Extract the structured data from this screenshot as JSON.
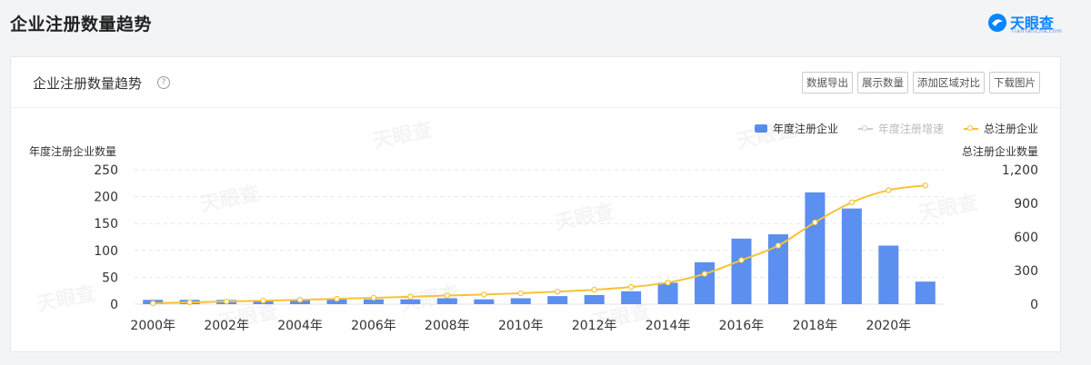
{
  "page": {
    "title": "企业注册数量趋势"
  },
  "brand": {
    "name": "天眼查",
    "sub": "TianYanCha.com"
  },
  "card": {
    "title": "企业注册数量趋势",
    "help_icon": "question-circle-icon"
  },
  "toolbar": {
    "export": "数据导出",
    "show_numbers": "展示数量",
    "add_region": "添加区域对比",
    "download": "下载图片"
  },
  "legend": {
    "bars": "年度注册企业",
    "growth": "年度注册增速",
    "total": "总注册企业"
  },
  "colors": {
    "bar": "#5b8ff0",
    "line": "#f7c234",
    "grid": "#e6e6e6",
    "axis_text": "#333333",
    "disabled": "#bbbbbb"
  },
  "chart_data": {
    "type": "bar",
    "title": "企业注册数量趋势",
    "x": [
      "2000年",
      "2001年",
      "2002年",
      "2003年",
      "2004年",
      "2005年",
      "2006年",
      "2007年",
      "2008年",
      "2009年",
      "2010年",
      "2011年",
      "2012年",
      "2013年",
      "2014年",
      "2015年",
      "2016年",
      "2017年",
      "2018年",
      "2019年",
      "2020年",
      "2021年"
    ],
    "x_tick_labels": [
      "2000年",
      "2002年",
      "2004年",
      "2006年",
      "2008年",
      "2010年",
      "2012年",
      "2014年",
      "2016年",
      "2018年",
      "2020年"
    ],
    "ylabel": "年度注册企业数量",
    "ylim": [
      0,
      250
    ],
    "yticks": [
      "250",
      "200",
      "150",
      "100",
      "50",
      "0"
    ],
    "y2label": "总注册企业数量",
    "y2lim": [
      0,
      1200
    ],
    "y2ticks": [
      "1,200",
      "900",
      "600",
      "300",
      "0"
    ],
    "grid": true,
    "legend_position": "top-right",
    "series": [
      {
        "name": "年度注册企业",
        "type": "bar",
        "axis": "left",
        "values": [
          8,
          8,
          8,
          7,
          8,
          9,
          9,
          9,
          11,
          9,
          11,
          15,
          17,
          24,
          40,
          78,
          122,
          130,
          208,
          178,
          109,
          42
        ]
      },
      {
        "name": "总注册企业",
        "type": "line",
        "axis": "right",
        "values": [
          8,
          16,
          24,
          31,
          39,
          48,
          57,
          66,
          77,
          86,
          97,
          112,
          129,
          153,
          193,
          271,
          393,
          523,
          731,
          909,
          1018,
          1060
        ]
      }
    ]
  },
  "axis_names": {
    "left": "年度注册企业数量",
    "right": "总注册企业数量"
  },
  "watermark": "天眼查"
}
